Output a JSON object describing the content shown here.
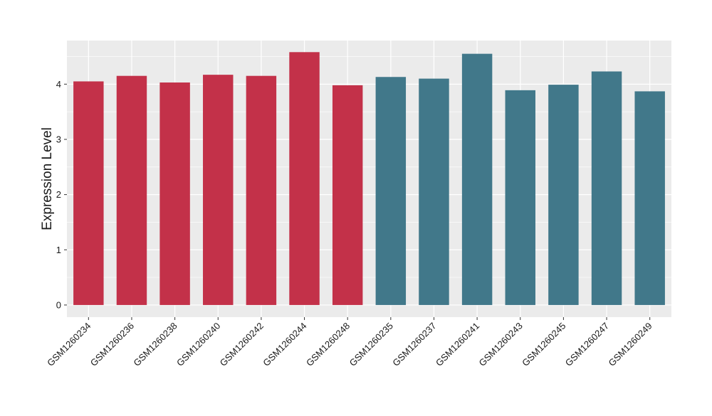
{
  "chart_data": {
    "type": "bar",
    "categories": [
      "GSM1260234",
      "GSM1260236",
      "GSM1260238",
      "GSM1260240",
      "GSM1260242",
      "GSM1260244",
      "GSM1260248",
      "GSM1260235",
      "GSM1260237",
      "GSM1260241",
      "GSM1260243",
      "GSM1260245",
      "GSM1260247",
      "GSM1260249"
    ],
    "values": [
      4.05,
      4.15,
      4.03,
      4.17,
      4.15,
      4.58,
      3.98,
      4.13,
      4.1,
      4.55,
      3.89,
      3.99,
      4.23,
      3.87
    ],
    "groups": [
      0,
      0,
      0,
      0,
      0,
      0,
      0,
      1,
      1,
      1,
      1,
      1,
      1,
      1
    ],
    "group_colors": [
      "#c33149",
      "#41788a"
    ],
    "title": "",
    "xlabel": "",
    "ylabel": "Expression Level",
    "ylim": [
      -0.22,
      4.79
    ],
    "yticks": [
      0,
      1,
      2,
      3,
      4
    ],
    "grid": true,
    "panel_color": "#ebebeb",
    "grid_color": "#ffffff",
    "legend": "none"
  }
}
